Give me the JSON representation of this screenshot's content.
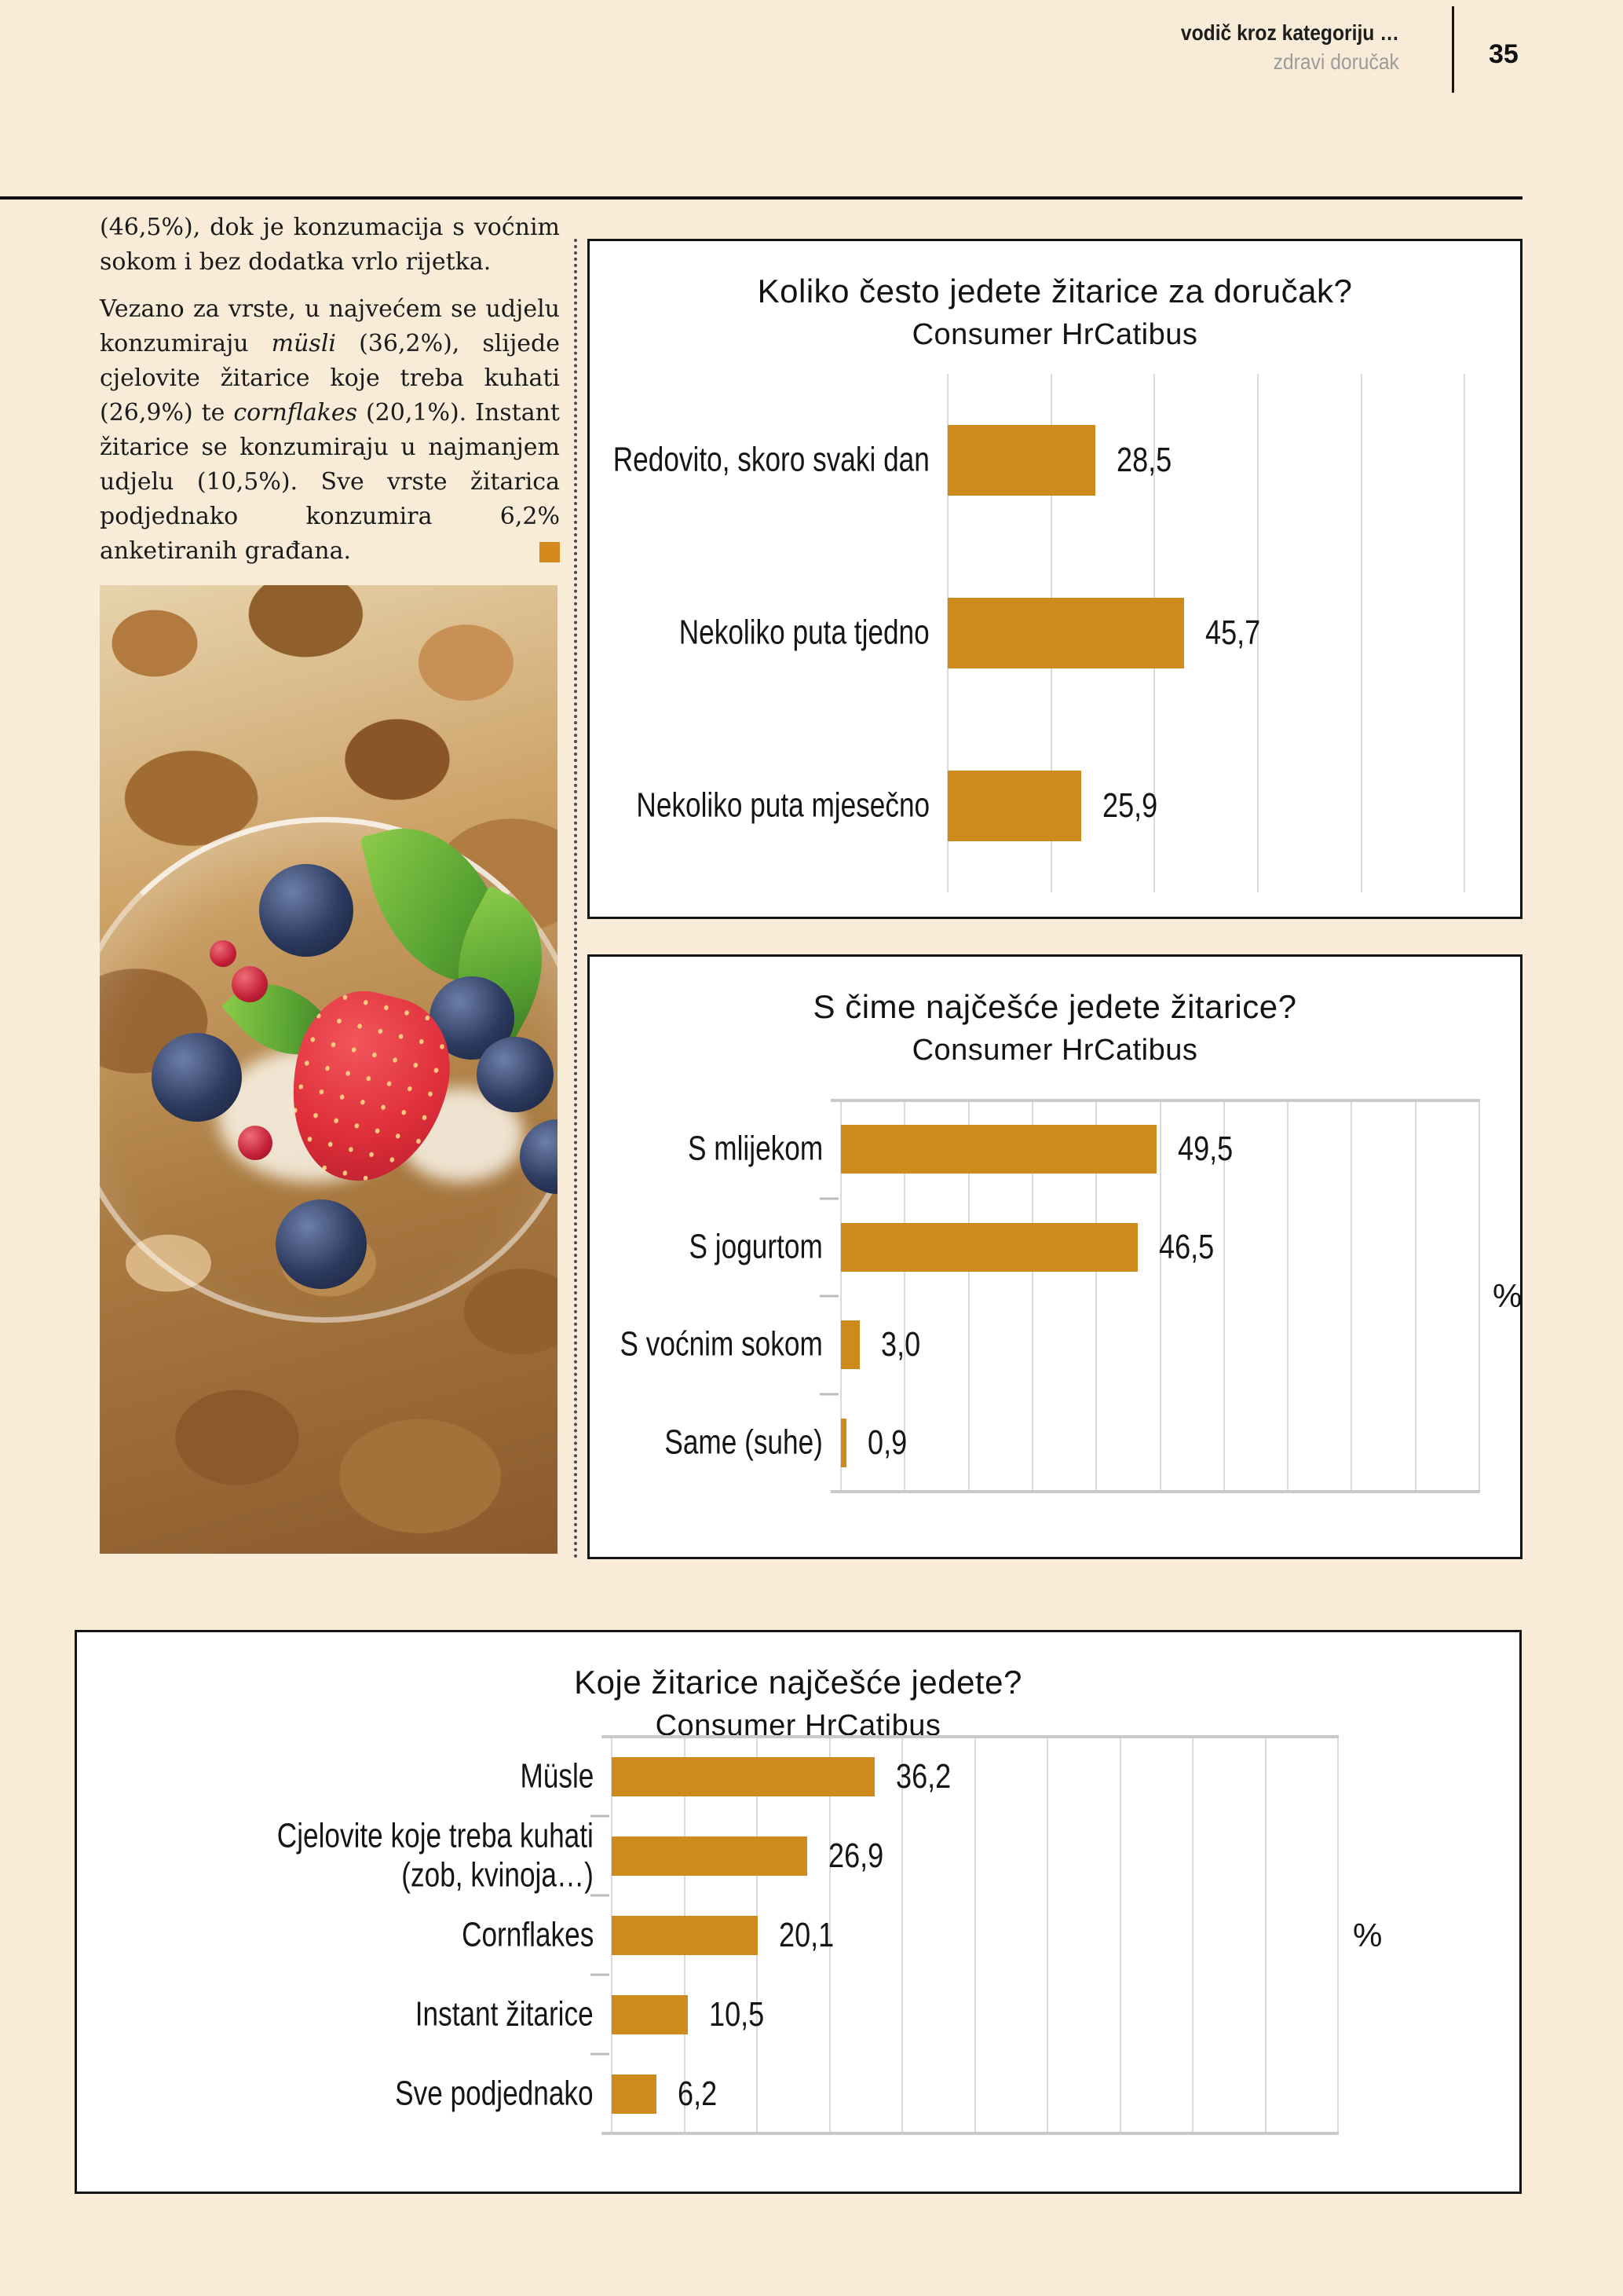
{
  "page": {
    "background_color": "#F8ECD9",
    "accent_color": "#CF8A1E"
  },
  "header": {
    "category": "vodič kroz kategoriju …",
    "subtitle": "zdravi doručak",
    "page_number": "35"
  },
  "article": {
    "para1": "(46,5%), dok je konzumacija s voćnim sokom i bez dodatka vrlo rijetka.",
    "para2": [
      {
        "style": "normal",
        "text": "Vezano za vrste, u najvećem se udjelu konzumiraju "
      },
      {
        "style": "italic",
        "text": "müsli"
      },
      {
        "style": "normal",
        "text": " (36,2%), slijede cjelovite žitarice koje treba kuhati (26,9%) te "
      },
      {
        "style": "italic",
        "text": "cornflakes"
      },
      {
        "style": "normal",
        "text": " (20,1%). Instant žitarice se konzumiraju u najmanjem udjelu (10,5%). Sve vrste žitarica podjednako konzumira 6,2% anketiranih građana."
      }
    ]
  },
  "photo": {
    "alt": "granola s borovnicama, jagodom, ribizima i mentom u staklenoj zdjelici"
  },
  "chart_data": [
    {
      "type": "bar",
      "orientation": "horizontal",
      "title": "Koliko često jedete žitarice za doručak?",
      "subtitle": "Consumer HrCatibus",
      "categories": [
        "Redovito, skoro svaki dan",
        "Nekoliko puta tjedno",
        "Nekoliko puta mjesečno"
      ],
      "values": [
        28.5,
        45.7,
        25.9
      ],
      "value_labels": [
        "28,5",
        "45,7",
        "25,9"
      ],
      "xlim": [
        0,
        110
      ],
      "gridlines": [
        0,
        20,
        40,
        60,
        80,
        100
      ],
      "grid": true,
      "legend": false,
      "axis_frame": false,
      "unit_label": "",
      "bar_color": "#CF8A1E"
    },
    {
      "type": "bar",
      "orientation": "horizontal",
      "title": "S čime najčešće jedete žitarice?",
      "subtitle": "Consumer HrCatibus",
      "categories": [
        "S mlijekom",
        "S jogurtom",
        "S voćnim sokom",
        "Same (suhe)"
      ],
      "values": [
        49.5,
        46.5,
        3.0,
        0.9
      ],
      "value_labels": [
        "49,5",
        "46,5",
        "3,0",
        "0,9"
      ],
      "xlim": [
        0,
        100
      ],
      "gridlines": [
        0,
        10,
        20,
        30,
        40,
        50,
        60,
        70,
        80,
        90,
        100
      ],
      "grid": true,
      "legend": false,
      "axis_frame": true,
      "unit_label": "%",
      "bar_color": "#CF8A1E"
    },
    {
      "type": "bar",
      "orientation": "horizontal",
      "title": "Koje žitarice najčešće jedete?",
      "subtitle": "Consumer HrCatibus",
      "categories": [
        "Müsle",
        "Cjelovite koje treba kuhati\n(zob, kvinoja…)",
        "Cornflakes",
        "Instant žitarice",
        "Sve podjednako"
      ],
      "values": [
        36.2,
        26.9,
        20.1,
        10.5,
        6.2
      ],
      "value_labels": [
        "36,2",
        "26,9",
        "20,1",
        "10,5",
        "6,2"
      ],
      "xlim": [
        0,
        100
      ],
      "gridlines": [
        0,
        10,
        20,
        30,
        40,
        50,
        60,
        70,
        80,
        90,
        100
      ],
      "grid": true,
      "legend": false,
      "axis_frame": true,
      "unit_label": "%",
      "bar_color": "#CF8A1E"
    }
  ]
}
